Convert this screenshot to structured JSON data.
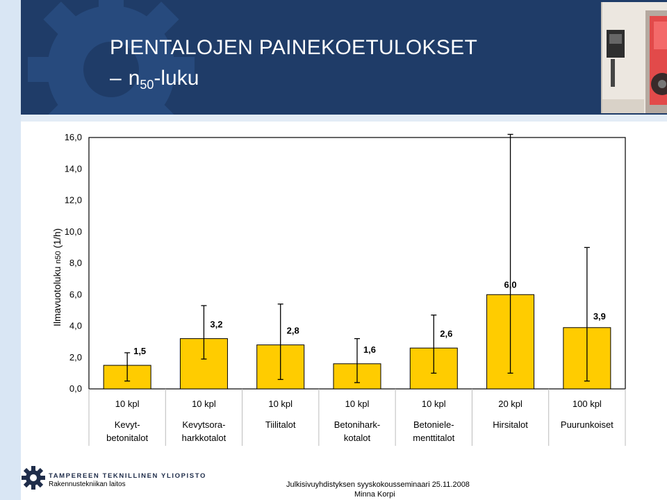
{
  "slide": {
    "title_line1": "PIENTALOJEN PAINEKOETULOKSET",
    "title_dash": "–",
    "title_n": "n",
    "title_sub": "50",
    "title_rest": "-luku"
  },
  "footer": {
    "university": "TAMPEREEN TEKNILLINEN YLIOPISTO",
    "department": "Rakennustekniikan laitos",
    "seminar": "Julkisivuyhdistyksen syyskokousseminaari 25.11.2008",
    "author": "Minna Korpi"
  },
  "colors": {
    "header": "#1f3c68",
    "bar": "#ffcc00",
    "bar_stroke": "#000000"
  },
  "chart_data": {
    "type": "bar",
    "ylabel_main": "Ilmavuotoluku",
    "ylabel_n": "n50",
    "ylabel_unit": "(1/h)",
    "ylim": [
      0,
      16
    ],
    "yticks": [
      "0,0",
      "2,0",
      "4,0",
      "6,0",
      "8,0",
      "10,0",
      "12,0",
      "14,0",
      "16,0"
    ],
    "grid": false,
    "categories": [
      [
        "Kevyt-",
        "betonitalot"
      ],
      [
        "Kevytsora-",
        "harkkotalot"
      ],
      [
        "Tiilitalot"
      ],
      [
        "Betonihark-",
        "kotalot"
      ],
      [
        "Betoniele-",
        "menttitalot"
      ],
      [
        "Hirsitalot"
      ],
      [
        "Puurunkoiset"
      ]
    ],
    "counts": [
      "10 kpl",
      "10 kpl",
      "10 kpl",
      "10 kpl",
      "10 kpl",
      "20 kpl",
      "100 kpl"
    ],
    "values": [
      1.5,
      3.2,
      2.8,
      1.6,
      2.6,
      6.0,
      3.9
    ],
    "value_labels": [
      "1,5",
      "3,2",
      "2,8",
      "1,6",
      "2,6",
      "6,0",
      "3,9"
    ],
    "error_min": [
      0.5,
      1.9,
      0.6,
      0.4,
      1.0,
      1.0,
      0.5
    ],
    "error_max": [
      2.3,
      5.3,
      5.4,
      3.2,
      4.7,
      16.2,
      9.0
    ]
  }
}
